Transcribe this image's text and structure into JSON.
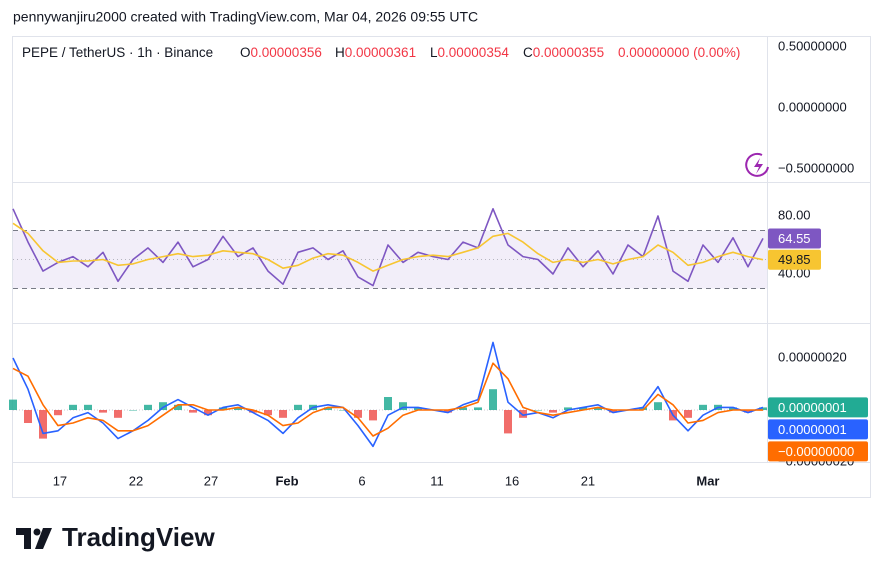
{
  "header": {
    "attribution": "pennywanjiru2000 created with TradingView.com, Mar 04, 2026 09:55 UTC",
    "symbol": "PEPE / TetherUS · 1h · Binance",
    "ohlc": [
      {
        "label": "O",
        "value": "0.00000356"
      },
      {
        "label": "H",
        "value": "0.00000361"
      },
      {
        "label": "L",
        "value": "0.00000354"
      },
      {
        "label": "C",
        "value": "0.00000355"
      }
    ],
    "change": "0.00000000 (0.00%)"
  },
  "chart_data": [
    {
      "type": "line",
      "ylim": [
        -0.59,
        0.574
      ],
      "yticks": [
        {
          "value": 0.5,
          "label": "0.50000000"
        },
        {
          "value": 0,
          "label": "0.00000000"
        },
        {
          "value": -0.5,
          "label": "−0.50000000"
        }
      ],
      "series": []
    },
    {
      "type": "line",
      "ylim": [
        6.9,
        102.8
      ],
      "yticks": [
        {
          "value": 80,
          "label": "80.00"
        },
        {
          "value": 40,
          "label": "40.00"
        }
      ],
      "band": [
        30,
        70
      ],
      "midline": 50,
      "band_color": "#7e57c2",
      "series": [
        {
          "color": "#7e57c2",
          "values": [
            85,
            62,
            42,
            48,
            52,
            45,
            55,
            35,
            50,
            58,
            48,
            62,
            45,
            50,
            66,
            52,
            58,
            42,
            33,
            55,
            58,
            50,
            56,
            38,
            32,
            60,
            48,
            55,
            52,
            50,
            62,
            58,
            85,
            60,
            52,
            50,
            40,
            58,
            45,
            56,
            40,
            60,
            52,
            80,
            42,
            35,
            60,
            48,
            65,
            45,
            64.55
          ]
        },
        {
          "color": "#f7c531",
          "values": [
            75,
            68,
            56,
            48,
            49,
            49,
            50,
            46,
            47,
            50,
            52,
            54,
            52,
            53,
            56,
            55,
            54,
            50,
            44,
            46,
            51,
            54,
            53,
            48,
            42,
            46,
            50,
            52,
            53,
            52,
            55,
            58,
            66,
            68,
            62,
            54,
            48,
            50,
            48,
            50,
            47,
            50,
            52,
            60,
            55,
            46,
            48,
            52,
            55,
            52,
            49.85
          ]
        }
      ]
    },
    {
      "type": "macd",
      "ylim": [
        -2e-07,
        3.27e-07
      ],
      "yticks": [
        {
          "value": 2e-07,
          "label": "0.00000020"
        },
        {
          "value": -2e-07,
          "label": "−0.00000020"
        }
      ],
      "xlim": [
        0,
        50
      ],
      "xticks": [
        {
          "value": 3.13,
          "label": "17"
        },
        {
          "value": 8.2,
          "label": "22"
        },
        {
          "value": 13.2,
          "label": "27"
        },
        {
          "value": 18.27,
          "label": "Feb"
        },
        {
          "value": 23.27,
          "label": "6"
        },
        {
          "value": 28.27,
          "label": "11"
        },
        {
          "value": 33.27,
          "label": "16"
        },
        {
          "value": 38.33,
          "label": "21"
        },
        {
          "value": 46.33,
          "label": "Mar"
        }
      ],
      "series": [
        {
          "type": "histogram",
          "color": "#22ab94",
          "color_negative": "#ef5350",
          "value_label": "0.00000001",
          "values": [
            4e-08,
            -5e-08,
            -1.1e-07,
            -2e-08,
            2e-08,
            2e-08,
            -1e-08,
            -3e-08,
            0,
            2e-08,
            3e-08,
            2e-08,
            -1e-08,
            -2e-08,
            1e-08,
            1e-08,
            -1e-08,
            -2e-08,
            -3e-08,
            2e-08,
            2e-08,
            1e-08,
            0,
            -3e-08,
            -4e-08,
            5e-08,
            3e-08,
            1e-08,
            0,
            -1e-08,
            1e-08,
            1e-08,
            8e-08,
            -9e-08,
            -3e-08,
            0,
            -1e-08,
            1e-08,
            1e-08,
            1e-08,
            -1e-08,
            0,
            1e-08,
            3e-08,
            -4e-08,
            -3e-08,
            2e-08,
            2e-08,
            1e-08,
            -1e-08,
            1e-08
          ]
        },
        {
          "type": "line",
          "color": "#2962ff",
          "value_label": "0.00000001",
          "values": [
            2e-07,
            8e-08,
            -9e-08,
            -8e-08,
            -3e-08,
            -1e-08,
            -5e-08,
            -1.1e-07,
            -8e-08,
            -4e-08,
            1e-08,
            4e-08,
            1e-08,
            -2e-08,
            1e-08,
            2e-08,
            -1e-08,
            -4e-08,
            -9e-08,
            -3e-08,
            1e-08,
            2e-08,
            1e-08,
            -6e-08,
            -1.4e-07,
            -2e-08,
            1e-08,
            1e-08,
            0,
            -1e-08,
            2e-08,
            4e-08,
            2.6e-07,
            3e-08,
            -2e-08,
            -1e-08,
            -3e-08,
            0,
            1e-08,
            2e-08,
            -1e-08,
            0,
            1e-08,
            9e-08,
            -2e-08,
            -8e-08,
            -2e-08,
            1e-08,
            1e-08,
            -1e-08,
            1e-08
          ]
        },
        {
          "type": "line",
          "color": "#ff6d00",
          "value_label": "−0.00000000",
          "values": [
            1.6e-07,
            1.3e-07,
            2e-08,
            -6e-08,
            -5e-08,
            -3e-08,
            -4e-08,
            -8e-08,
            -8e-08,
            -6e-08,
            -2e-08,
            2e-08,
            2e-08,
            0,
            0,
            1e-08,
            0,
            -2e-08,
            -6e-08,
            -5e-08,
            -1e-08,
            1e-08,
            1e-08,
            -3e-08,
            -1e-07,
            -7e-08,
            -2e-08,
            0,
            0,
            0,
            1e-08,
            3e-08,
            1.8e-07,
            1.2e-07,
            1e-08,
            -1e-08,
            -2e-08,
            -1e-08,
            0,
            1e-08,
            0,
            0,
            0,
            6e-08,
            2e-08,
            -5e-08,
            -4e-08,
            -1e-08,
            0,
            0,
            -2e-10
          ]
        }
      ]
    }
  ],
  "footer": {
    "brand": "TradingView"
  }
}
